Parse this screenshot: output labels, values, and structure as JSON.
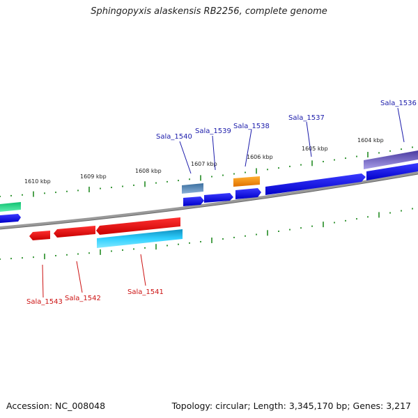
{
  "title": "Sphingopyxis alaskensis RB2256, complete genome",
  "footer": {
    "accession": "Accession: NC_008048",
    "topology": "Topology: circular; Length: 3,345,170 bp; Genes: 3,217"
  },
  "ruler_labels": [
    "1610 kbp",
    "1609 kbp",
    "1608 kbp",
    "1607 kbp",
    "1606 kbp",
    "1605 kbp",
    "1604 kbp"
  ],
  "gene_labels_forward": [
    "Sala_1540",
    "Sala_1539",
    "Sala_1538",
    "Sala_1537",
    "Sala_1536"
  ],
  "gene_labels_reverse": [
    "Sala_1543",
    "Sala_1542",
    "Sala_1541"
  ],
  "colors": {
    "forward_cds": "#0000ee",
    "reverse_cds": "#ee0000",
    "forward_label": "#1a1aaa",
    "reverse_label": "#cc1111",
    "rna": "#ff9900",
    "steelblue_feature": "#4a7fb0",
    "cyan_feature": "#20b8e8",
    "purple_feature": "#6a5acd",
    "green_feature": "#20e090",
    "backbone": "#888888",
    "ticks": "#228b22"
  }
}
